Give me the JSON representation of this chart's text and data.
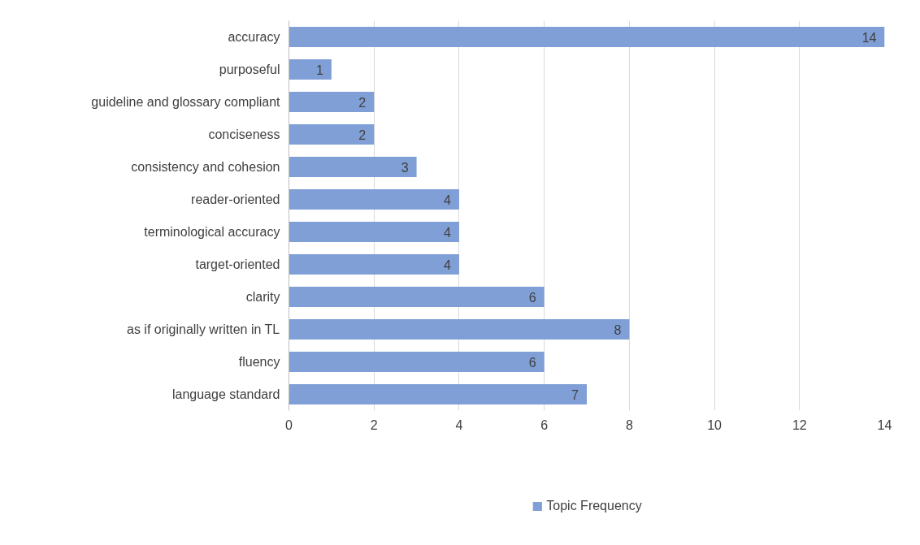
{
  "chart_data": {
    "type": "bar",
    "orientation": "horizontal",
    "categories": [
      "accuracy",
      "purposeful",
      "guideline and glossary compliant",
      "conciseness",
      "consistency and cohesion",
      "reader-oriented",
      "terminological accuracy",
      "target-oriented",
      "clarity",
      "as if originally written in TL",
      "fluency",
      "language standard"
    ],
    "series": [
      {
        "name": "Topic Frequency",
        "color": "#7f9fd6",
        "values": [
          14,
          1,
          2,
          2,
          3,
          4,
          4,
          4,
          6,
          8,
          6,
          7
        ]
      }
    ],
    "xlim": [
      0,
      14
    ],
    "xticks": [
      0,
      2,
      4,
      6,
      8,
      10,
      12,
      14
    ],
    "grid": "x",
    "legend": "bottom",
    "data_labels": true
  }
}
